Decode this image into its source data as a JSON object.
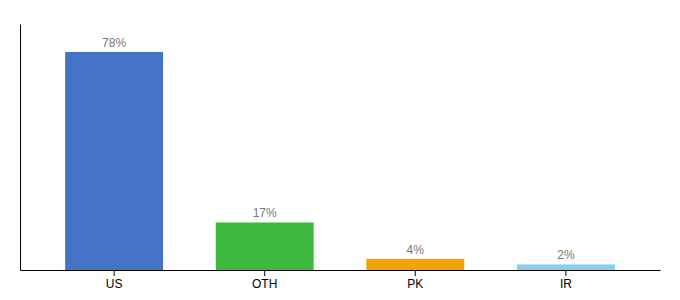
{
  "chart_data": {
    "type": "bar",
    "categories": [
      "US",
      "OTH",
      "PK",
      "IR"
    ],
    "values": [
      78,
      17,
      4,
      2
    ],
    "value_labels": [
      "78%",
      "17%",
      "4%",
      "2%"
    ],
    "data_labels": true,
    "colors": [
      "#4472c4",
      "#3dba3d",
      "#f0a500",
      "#87ceeb"
    ],
    "ylim": [
      0,
      88
    ],
    "tick_labels": "x"
  }
}
